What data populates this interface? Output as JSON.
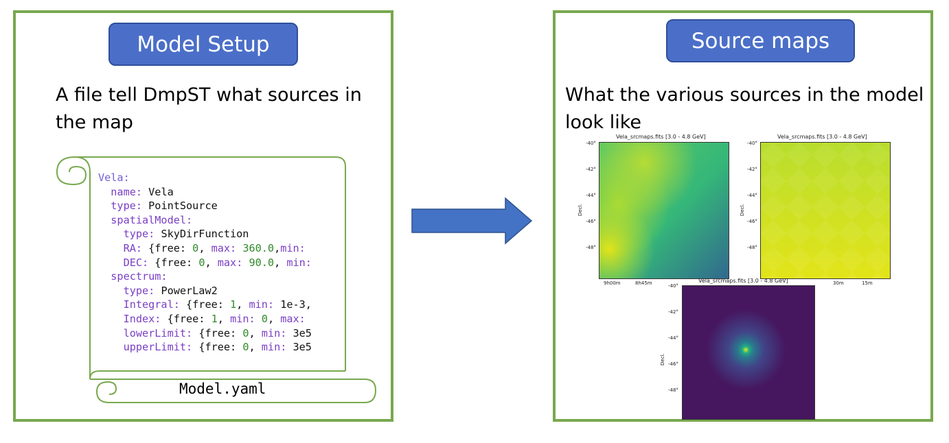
{
  "left_panel": {
    "title": "Model Setup",
    "description": "A file tell DmpST what sources in the map",
    "filename": "Model.yaml"
  },
  "yaml_lines": [
    {
      "parts": [
        {
          "t": "Vela:",
          "c": "k2"
        }
      ]
    },
    {
      "parts": [
        {
          "t": "  name: ",
          "c": "k"
        },
        {
          "t": "Vela",
          "c": "v"
        }
      ]
    },
    {
      "parts": [
        {
          "t": "  type: ",
          "c": "k"
        },
        {
          "t": "PointSource",
          "c": "v"
        }
      ]
    },
    {
      "parts": [
        {
          "t": "  spatialModel:",
          "c": "k"
        }
      ]
    },
    {
      "parts": [
        {
          "t": "    type: ",
          "c": "k"
        },
        {
          "t": "SkyDirFunction",
          "c": "v"
        }
      ]
    },
    {
      "parts": [
        {
          "t": "    RA: ",
          "c": "k"
        },
        {
          "t": "{free: ",
          "c": "v"
        },
        {
          "t": "0",
          "c": "n"
        },
        {
          "t": ", ",
          "c": "v"
        },
        {
          "t": "max: ",
          "c": "k"
        },
        {
          "t": "360.0",
          "c": "n"
        },
        {
          "t": ",",
          "c": "v"
        },
        {
          "t": "min:",
          "c": "k"
        }
      ]
    },
    {
      "parts": [
        {
          "t": "    DEC: ",
          "c": "k"
        },
        {
          "t": "{free: ",
          "c": "v"
        },
        {
          "t": "0",
          "c": "n"
        },
        {
          "t": ", ",
          "c": "v"
        },
        {
          "t": "max: ",
          "c": "k"
        },
        {
          "t": "90.0",
          "c": "n"
        },
        {
          "t": ", ",
          "c": "v"
        },
        {
          "t": "min:",
          "c": "k"
        }
      ]
    },
    {
      "parts": [
        {
          "t": "  spectrum:",
          "c": "k"
        }
      ]
    },
    {
      "parts": [
        {
          "t": "    type: ",
          "c": "k"
        },
        {
          "t": "PowerLaw2",
          "c": "v"
        }
      ]
    },
    {
      "parts": [
        {
          "t": "    Integral: ",
          "c": "k"
        },
        {
          "t": "{free: ",
          "c": "v"
        },
        {
          "t": "1",
          "c": "n"
        },
        {
          "t": ", ",
          "c": "v"
        },
        {
          "t": "min: ",
          "c": "k"
        },
        {
          "t": "1e-3,",
          "c": "v"
        }
      ]
    },
    {
      "parts": [
        {
          "t": "    Index: ",
          "c": "k"
        },
        {
          "t": "{free: ",
          "c": "v"
        },
        {
          "t": "1",
          "c": "n"
        },
        {
          "t": ", ",
          "c": "v"
        },
        {
          "t": "min: ",
          "c": "k"
        },
        {
          "t": "0",
          "c": "n"
        },
        {
          "t": ", ",
          "c": "v"
        },
        {
          "t": "max:",
          "c": "k"
        }
      ]
    },
    {
      "parts": [
        {
          "t": "    lowerLimit: ",
          "c": "k"
        },
        {
          "t": "{free: ",
          "c": "v"
        },
        {
          "t": "0",
          "c": "n"
        },
        {
          "t": ", ",
          "c": "v"
        },
        {
          "t": "min: ",
          "c": "k"
        },
        {
          "t": "3e5",
          "c": "v"
        }
      ]
    },
    {
      "parts": [
        {
          "t": "    upperLimit: ",
          "c": "k"
        },
        {
          "t": "{free: ",
          "c": "v"
        },
        {
          "t": "0",
          "c": "n"
        },
        {
          "t": ", ",
          "c": "v"
        },
        {
          "t": "min: ",
          "c": "k"
        },
        {
          "t": "3e5",
          "c": "v"
        }
      ]
    }
  ],
  "right_panel": {
    "title": "Source maps",
    "description": "What the various sources in the model look like"
  },
  "maps": [
    {
      "title": "Vela_srcmaps.fits [3.0 - 4.8 GeV]",
      "ylabel": "Decl.",
      "yticks": [
        "-40°",
        "-42°",
        "-44°",
        "-46°",
        "-48°"
      ],
      "xticks": [
        "9h00m",
        "8h45m"
      ],
      "style": "diffuse-galactic"
    },
    {
      "title": "Vela_srcmaps.fits [3.0 - 4.8 GeV]",
      "ylabel": "Decl.",
      "yticks": [
        "-40°",
        "-42°",
        "-44°",
        "-46°",
        "-48°"
      ],
      "xticks": [
        "30m",
        "15m"
      ],
      "style": "isotropic"
    },
    {
      "title": "Vela_srcmaps.fits [3.0 - 4.8 GeV]",
      "ylabel": "Decl.",
      "yticks": [
        "-40°",
        "-42°",
        "-44°",
        "-46°",
        "-48°"
      ],
      "xticks": [],
      "style": "point-source"
    }
  ],
  "colors": {
    "panel_border": "#77a84e",
    "title_fill": "#4b6fc8",
    "arrow_fill": "#4472c4",
    "scroll_stroke": "#77a84e"
  }
}
